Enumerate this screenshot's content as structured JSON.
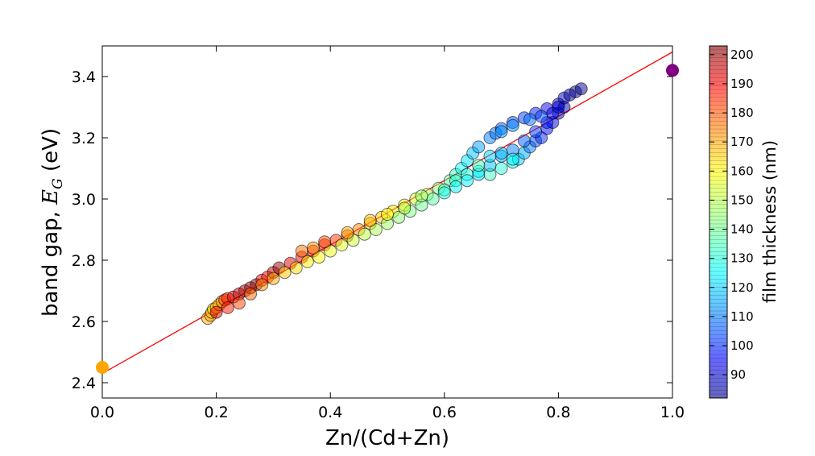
{
  "chart_data": {
    "type": "scatter",
    "title": "",
    "xlabel": "Zn/(Cd+Zn)",
    "ylabel_prefix": "band gap, ",
    "ylabel_symbol": "E",
    "ylabel_subscript": "G",
    "ylabel_suffix": " (eV)",
    "xlim": [
      0.0,
      1.0
    ],
    "ylim": [
      2.35,
      3.5
    ],
    "xticks": [
      "0.0",
      "0.2",
      "0.4",
      "0.6",
      "0.8",
      "1.0"
    ],
    "yticks": [
      "2.4",
      "2.6",
      "2.8",
      "3.0",
      "3.2",
      "3.4"
    ],
    "grid": false,
    "colorbar": {
      "label": "film thickness (nm)",
      "range": [
        82,
        203
      ],
      "ticks": [
        "90",
        "100",
        "110",
        "120",
        "130",
        "140",
        "150",
        "160",
        "170",
        "180",
        "190",
        "200"
      ],
      "colormap": "jet"
    },
    "fit_line": {
      "color": "#ff0000",
      "x": [
        0.0,
        1.0
      ],
      "y": [
        2.43,
        3.48
      ]
    },
    "endpoints": [
      {
        "x": 0.0,
        "y": 2.45,
        "color": "#ffa500"
      },
      {
        "x": 1.0,
        "y": 3.42,
        "color": "#800080"
      }
    ],
    "series": [
      {
        "marker_edge": "#000000",
        "points": [
          [
            0.185,
            2.61,
            168
          ],
          [
            0.19,
            2.62,
            168
          ],
          [
            0.192,
            2.63,
            164
          ],
          [
            0.195,
            2.64,
            162
          ],
          [
            0.2,
            2.645,
            165
          ],
          [
            0.205,
            2.655,
            168
          ],
          [
            0.21,
            2.665,
            172
          ],
          [
            0.215,
            2.67,
            180
          ],
          [
            0.22,
            2.675,
            185
          ],
          [
            0.23,
            2.68,
            192
          ],
          [
            0.24,
            2.69,
            195
          ],
          [
            0.25,
            2.7,
            198
          ],
          [
            0.26,
            2.71,
            200
          ],
          [
            0.27,
            2.72,
            202
          ],
          [
            0.28,
            2.735,
            190
          ],
          [
            0.29,
            2.745,
            186
          ],
          [
            0.3,
            2.76,
            196
          ],
          [
            0.31,
            2.775,
            200
          ],
          [
            0.33,
            2.79,
            192
          ],
          [
            0.35,
            2.81,
            190
          ],
          [
            0.37,
            2.83,
            188
          ],
          [
            0.39,
            2.85,
            186
          ],
          [
            0.41,
            2.865,
            182
          ],
          [
            0.43,
            2.88,
            178
          ],
          [
            0.45,
            2.9,
            172
          ],
          [
            0.47,
            2.92,
            168
          ],
          [
            0.49,
            2.94,
            164
          ],
          [
            0.51,
            2.96,
            160
          ],
          [
            0.53,
            2.98,
            156
          ],
          [
            0.55,
            3.0,
            152
          ],
          [
            0.57,
            3.015,
            148
          ],
          [
            0.59,
            3.035,
            144
          ],
          [
            0.61,
            3.06,
            138
          ],
          [
            0.62,
            3.08,
            134
          ],
          [
            0.63,
            3.1,
            128
          ],
          [
            0.64,
            3.125,
            124
          ],
          [
            0.65,
            3.15,
            120
          ],
          [
            0.66,
            3.17,
            116
          ],
          [
            0.68,
            3.2,
            112
          ],
          [
            0.69,
            3.215,
            110
          ],
          [
            0.7,
            3.23,
            108
          ],
          [
            0.72,
            3.25,
            106
          ],
          [
            0.74,
            3.265,
            104
          ],
          [
            0.76,
            3.28,
            100
          ],
          [
            0.78,
            3.295,
            96
          ],
          [
            0.8,
            3.31,
            92
          ],
          [
            0.81,
            3.33,
            90
          ],
          [
            0.82,
            3.34,
            86
          ],
          [
            0.83,
            3.35,
            84
          ],
          [
            0.84,
            3.36,
            83
          ],
          [
            0.2,
            2.63,
            190
          ],
          [
            0.22,
            2.645,
            185
          ],
          [
            0.24,
            2.66,
            180
          ],
          [
            0.26,
            2.69,
            176
          ],
          [
            0.28,
            2.72,
            172
          ],
          [
            0.3,
            2.74,
            168
          ],
          [
            0.32,
            2.76,
            165
          ],
          [
            0.34,
            2.775,
            162
          ],
          [
            0.36,
            2.795,
            160
          ],
          [
            0.38,
            2.81,
            158
          ],
          [
            0.4,
            2.83,
            156
          ],
          [
            0.42,
            2.85,
            154
          ],
          [
            0.44,
            2.865,
            152
          ],
          [
            0.46,
            2.885,
            150
          ],
          [
            0.48,
            2.9,
            148
          ],
          [
            0.5,
            2.92,
            146
          ],
          [
            0.52,
            2.94,
            144
          ],
          [
            0.54,
            2.96,
            142
          ],
          [
            0.56,
            2.98,
            140
          ],
          [
            0.58,
            3.0,
            138
          ],
          [
            0.6,
            3.03,
            136
          ],
          [
            0.62,
            3.06,
            134
          ],
          [
            0.64,
            3.08,
            132
          ],
          [
            0.66,
            3.09,
            130
          ],
          [
            0.68,
            3.08,
            134
          ],
          [
            0.7,
            3.1,
            132
          ],
          [
            0.72,
            3.12,
            126
          ],
          [
            0.73,
            3.13,
            122
          ],
          [
            0.74,
            3.15,
            118
          ],
          [
            0.75,
            3.17,
            112
          ],
          [
            0.76,
            3.19,
            106
          ],
          [
            0.77,
            3.2,
            102
          ],
          [
            0.78,
            3.23,
            98
          ],
          [
            0.79,
            3.25,
            94
          ],
          [
            0.8,
            3.28,
            90
          ],
          [
            0.81,
            3.3,
            88
          ],
          [
            0.6,
            3.02,
            130
          ],
          [
            0.62,
            3.04,
            128
          ],
          [
            0.64,
            3.06,
            126
          ],
          [
            0.66,
            3.08,
            124
          ],
          [
            0.68,
            3.11,
            120
          ],
          [
            0.7,
            3.14,
            116
          ],
          [
            0.72,
            3.16,
            112
          ],
          [
            0.74,
            3.19,
            108
          ],
          [
            0.76,
            3.22,
            104
          ],
          [
            0.78,
            3.25,
            100
          ],
          [
            0.79,
            3.28,
            96
          ],
          [
            0.8,
            3.3,
            92
          ],
          [
            0.7,
            3.22,
            115
          ],
          [
            0.72,
            3.24,
            114
          ],
          [
            0.75,
            3.26,
            110
          ],
          [
            0.77,
            3.27,
            105
          ],
          [
            0.68,
            3.14,
            122
          ],
          [
            0.7,
            3.15,
            120
          ],
          [
            0.72,
            3.13,
            128
          ],
          [
            0.66,
            3.11,
            135
          ],
          [
            0.35,
            2.83,
            175
          ],
          [
            0.37,
            2.84,
            170
          ],
          [
            0.39,
            2.86,
            178
          ],
          [
            0.43,
            2.89,
            168
          ],
          [
            0.47,
            2.93,
            165
          ],
          [
            0.5,
            2.95,
            158
          ],
          [
            0.53,
            2.97,
            150
          ],
          [
            0.56,
            3.01,
            145
          ]
        ]
      }
    ]
  }
}
